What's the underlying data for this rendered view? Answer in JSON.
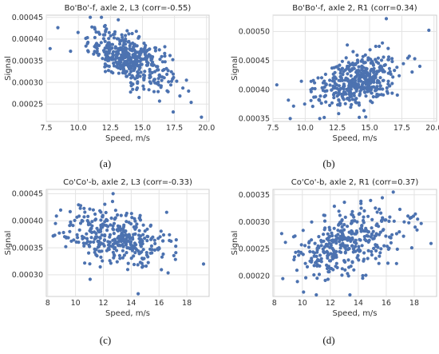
{
  "chart_data": [
    {
      "type": "scatter",
      "title": "Bo'Bo'-f, axle 2, L3 (corr=-0.55)",
      "xlabel": "Speed, m/s",
      "ylabel": "Signal",
      "xlim": [
        7.5,
        20.2
      ],
      "ylim": [
        0.00021,
        0.000455
      ],
      "xticks": [
        7.5,
        10.0,
        12.5,
        15.0,
        17.5,
        20.0
      ],
      "xtick_labels": [
        "7.5",
        "10.0",
        "12.5",
        "15.0",
        "17.5",
        "20.0"
      ],
      "yticks": [
        0.00025,
        0.0003,
        0.00035,
        0.0004,
        0.00045
      ],
      "ytick_labels": [
        "0.00025",
        "0.00030",
        "0.00035",
        "0.00040",
        "0.00045"
      ],
      "grid": true,
      "color": "#4c72b0",
      "points": {
        "n": 420,
        "center": [
          14.0,
          0.000355
        ],
        "x_sd": 1.6,
        "y_sd": 3.2e-05,
        "corr": -0.55,
        "x_range": [
          7.8,
          19.6
        ],
        "y_range": [
          0.00022,
          0.00045
        ]
      },
      "extra_points": [
        [
          7.8,
          0.000378
        ],
        [
          19.6,
          0.00022
        ],
        [
          17.4,
          0.000232
        ],
        [
          11.8,
          0.00045
        ],
        [
          18.6,
          0.00028
        ]
      ],
      "caption": "(a)"
    },
    {
      "type": "scatter",
      "title": "Bo'Bo'-f, axle 2, R1 (corr=0.34)",
      "xlabel": "Speed, m/s",
      "ylabel": "Signal",
      "xlim": [
        7.5,
        20.2
      ],
      "ylim": [
        0.000345,
        0.000528
      ],
      "xticks": [
        7.5,
        10.0,
        12.5,
        15.0,
        17.5,
        20.0
      ],
      "xtick_labels": [
        "7.5",
        "10.0",
        "12.5",
        "15.0",
        "17.5",
        "20.0"
      ],
      "yticks": [
        0.00035,
        0.0004,
        0.00045,
        0.0005
      ],
      "ytick_labels": [
        "0.00035",
        "0.00040",
        "0.00045",
        "0.00050"
      ],
      "grid": true,
      "color": "#4c72b0",
      "points": {
        "n": 420,
        "center": [
          14.0,
          0.000415
        ],
        "x_sd": 1.6,
        "y_sd": 2.2e-05,
        "corr": 0.34,
        "x_range": [
          7.8,
          19.6
        ],
        "y_range": [
          0.00035,
          0.000522
        ]
      },
      "extra_points": [
        [
          7.8,
          0.000408
        ],
        [
          19.6,
          0.000502
        ],
        [
          16.3,
          0.000522
        ],
        [
          14.2,
          0.000352
        ],
        [
          18.9,
          0.00044
        ]
      ],
      "caption": "(b)"
    },
    {
      "type": "scatter",
      "title": "Co'Co'-b, axle 2, L3 (corr=-0.33)",
      "xlabel": "Speed, m/s",
      "ylabel": "Signal",
      "xlim": [
        7.9,
        19.6
      ],
      "ylim": [
        0.00026,
        0.000458
      ],
      "xticks": [
        8,
        10,
        12,
        14,
        16,
        18
      ],
      "xtick_labels": [
        "8",
        "10",
        "12",
        "14",
        "16",
        "18"
      ],
      "yticks": [
        0.0003,
        0.00035,
        0.0004,
        0.00045
      ],
      "ytick_labels": [
        "0.00030",
        "0.00035",
        "0.00040",
        "0.00045"
      ],
      "grid": true,
      "color": "#4c72b0",
      "points": {
        "n": 360,
        "center": [
          13.0,
          0.000367
        ],
        "x_sd": 1.9,
        "y_sd": 2.7e-05,
        "corr": -0.33,
        "x_range": [
          8.4,
          19.2
        ],
        "y_range": [
          0.000265,
          0.00045
        ]
      },
      "extra_points": [
        [
          8.4,
          0.000372
        ],
        [
          19.2,
          0.00032
        ],
        [
          14.5,
          0.000265
        ],
        [
          12.7,
          0.00045
        ],
        [
          9.3,
          0.000352
        ]
      ],
      "caption": "(c)"
    },
    {
      "type": "scatter",
      "title": "Co'Co'-b, axle 2, R1 (corr=0.37)",
      "xlabel": "Speed, m/s",
      "ylabel": "Signal",
      "xlim": [
        7.9,
        19.6
      ],
      "ylim": [
        0.000162,
        0.00036
      ],
      "xticks": [
        8,
        10,
        12,
        14,
        16,
        18
      ],
      "xtick_labels": [
        "8",
        "10",
        "12",
        "14",
        "16",
        "18"
      ],
      "yticks": [
        0.0002,
        0.00025,
        0.0003,
        0.00035
      ],
      "ytick_labels": [
        "0.00020",
        "0.00025",
        "0.00030",
        "0.00035"
      ],
      "grid": true,
      "color": "#4c72b0",
      "points": {
        "n": 360,
        "center": [
          13.2,
          0.00026
        ],
        "x_sd": 1.9,
        "y_sd": 3.3e-05,
        "corr": 0.37,
        "x_range": [
          8.4,
          19.2
        ],
        "y_range": [
          0.000165,
          0.000355
        ]
      },
      "extra_points": [
        [
          8.6,
          0.000195
        ],
        [
          19.2,
          0.00026
        ],
        [
          16.5,
          0.000355
        ],
        [
          11.0,
          0.000165
        ],
        [
          18.2,
          0.000285
        ]
      ],
      "caption": "(d)"
    }
  ]
}
